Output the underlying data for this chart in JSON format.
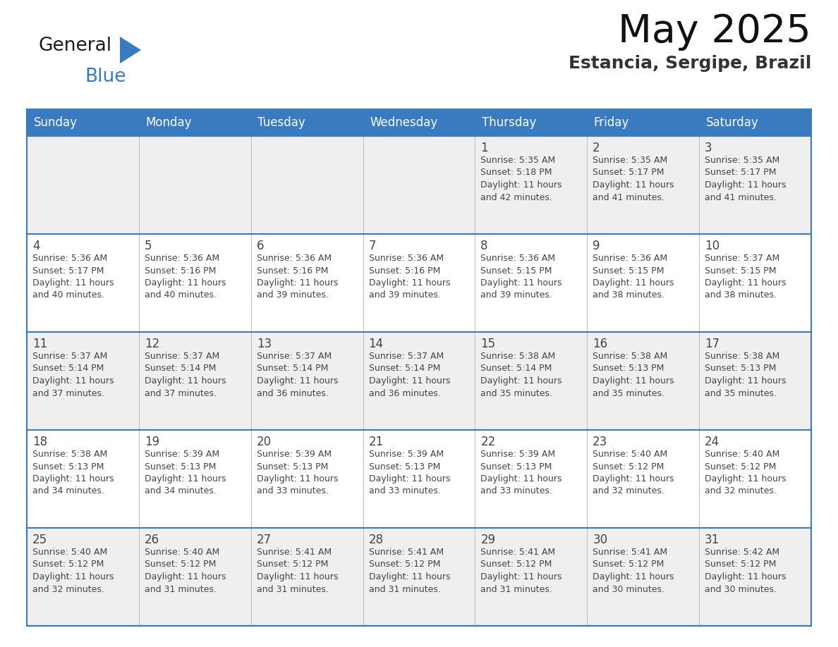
{
  "title": "May 2025",
  "subtitle": "Estancia, Sergipe, Brazil",
  "header_bg": "#3a7abf",
  "header_text_color": "#ffffff",
  "cell_bg_white": "#ffffff",
  "cell_bg_light": "#efefef",
  "border_color": "#3a7abf",
  "text_color": "#444444",
  "days_of_week": [
    "Sunday",
    "Monday",
    "Tuesday",
    "Wednesday",
    "Thursday",
    "Friday",
    "Saturday"
  ],
  "weeks": [
    [
      {
        "day": "",
        "info": ""
      },
      {
        "day": "",
        "info": ""
      },
      {
        "day": "",
        "info": ""
      },
      {
        "day": "",
        "info": ""
      },
      {
        "day": "1",
        "info": "Sunrise: 5:35 AM\nSunset: 5:18 PM\nDaylight: 11 hours\nand 42 minutes."
      },
      {
        "day": "2",
        "info": "Sunrise: 5:35 AM\nSunset: 5:17 PM\nDaylight: 11 hours\nand 41 minutes."
      },
      {
        "day": "3",
        "info": "Sunrise: 5:35 AM\nSunset: 5:17 PM\nDaylight: 11 hours\nand 41 minutes."
      }
    ],
    [
      {
        "day": "4",
        "info": "Sunrise: 5:36 AM\nSunset: 5:17 PM\nDaylight: 11 hours\nand 40 minutes."
      },
      {
        "day": "5",
        "info": "Sunrise: 5:36 AM\nSunset: 5:16 PM\nDaylight: 11 hours\nand 40 minutes."
      },
      {
        "day": "6",
        "info": "Sunrise: 5:36 AM\nSunset: 5:16 PM\nDaylight: 11 hours\nand 39 minutes."
      },
      {
        "day": "7",
        "info": "Sunrise: 5:36 AM\nSunset: 5:16 PM\nDaylight: 11 hours\nand 39 minutes."
      },
      {
        "day": "8",
        "info": "Sunrise: 5:36 AM\nSunset: 5:15 PM\nDaylight: 11 hours\nand 39 minutes."
      },
      {
        "day": "9",
        "info": "Sunrise: 5:36 AM\nSunset: 5:15 PM\nDaylight: 11 hours\nand 38 minutes."
      },
      {
        "day": "10",
        "info": "Sunrise: 5:37 AM\nSunset: 5:15 PM\nDaylight: 11 hours\nand 38 minutes."
      }
    ],
    [
      {
        "day": "11",
        "info": "Sunrise: 5:37 AM\nSunset: 5:14 PM\nDaylight: 11 hours\nand 37 minutes."
      },
      {
        "day": "12",
        "info": "Sunrise: 5:37 AM\nSunset: 5:14 PM\nDaylight: 11 hours\nand 37 minutes."
      },
      {
        "day": "13",
        "info": "Sunrise: 5:37 AM\nSunset: 5:14 PM\nDaylight: 11 hours\nand 36 minutes."
      },
      {
        "day": "14",
        "info": "Sunrise: 5:37 AM\nSunset: 5:14 PM\nDaylight: 11 hours\nand 36 minutes."
      },
      {
        "day": "15",
        "info": "Sunrise: 5:38 AM\nSunset: 5:14 PM\nDaylight: 11 hours\nand 35 minutes."
      },
      {
        "day": "16",
        "info": "Sunrise: 5:38 AM\nSunset: 5:13 PM\nDaylight: 11 hours\nand 35 minutes."
      },
      {
        "day": "17",
        "info": "Sunrise: 5:38 AM\nSunset: 5:13 PM\nDaylight: 11 hours\nand 35 minutes."
      }
    ],
    [
      {
        "day": "18",
        "info": "Sunrise: 5:38 AM\nSunset: 5:13 PM\nDaylight: 11 hours\nand 34 minutes."
      },
      {
        "day": "19",
        "info": "Sunrise: 5:39 AM\nSunset: 5:13 PM\nDaylight: 11 hours\nand 34 minutes."
      },
      {
        "day": "20",
        "info": "Sunrise: 5:39 AM\nSunset: 5:13 PM\nDaylight: 11 hours\nand 33 minutes."
      },
      {
        "day": "21",
        "info": "Sunrise: 5:39 AM\nSunset: 5:13 PM\nDaylight: 11 hours\nand 33 minutes."
      },
      {
        "day": "22",
        "info": "Sunrise: 5:39 AM\nSunset: 5:13 PM\nDaylight: 11 hours\nand 33 minutes."
      },
      {
        "day": "23",
        "info": "Sunrise: 5:40 AM\nSunset: 5:12 PM\nDaylight: 11 hours\nand 32 minutes."
      },
      {
        "day": "24",
        "info": "Sunrise: 5:40 AM\nSunset: 5:12 PM\nDaylight: 11 hours\nand 32 minutes."
      }
    ],
    [
      {
        "day": "25",
        "info": "Sunrise: 5:40 AM\nSunset: 5:12 PM\nDaylight: 11 hours\nand 32 minutes."
      },
      {
        "day": "26",
        "info": "Sunrise: 5:40 AM\nSunset: 5:12 PM\nDaylight: 11 hours\nand 31 minutes."
      },
      {
        "day": "27",
        "info": "Sunrise: 5:41 AM\nSunset: 5:12 PM\nDaylight: 11 hours\nand 31 minutes."
      },
      {
        "day": "28",
        "info": "Sunrise: 5:41 AM\nSunset: 5:12 PM\nDaylight: 11 hours\nand 31 minutes."
      },
      {
        "day": "29",
        "info": "Sunrise: 5:41 AM\nSunset: 5:12 PM\nDaylight: 11 hours\nand 31 minutes."
      },
      {
        "day": "30",
        "info": "Sunrise: 5:41 AM\nSunset: 5:12 PM\nDaylight: 11 hours\nand 30 minutes."
      },
      {
        "day": "31",
        "info": "Sunrise: 5:42 AM\nSunset: 5:12 PM\nDaylight: 11 hours\nand 30 minutes."
      }
    ]
  ],
  "logo_color_general": "#1a1a1a",
  "logo_color_blue": "#3a7abf",
  "logo_color_triangle": "#3a7abf"
}
